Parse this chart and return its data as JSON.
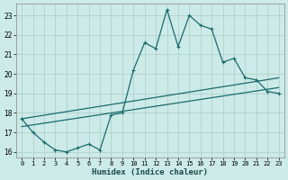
{
  "xlabel": "Humidex (Indice chaleur)",
  "background_color": "#cceae7",
  "grid_color": "#aaccca",
  "line_color": "#1a6b6b",
  "xlim": [
    -0.5,
    23.5
  ],
  "ylim": [
    15.7,
    23.6
  ],
  "yticks": [
    16,
    17,
    18,
    19,
    20,
    21,
    22,
    23
  ],
  "xticks": [
    0,
    1,
    2,
    3,
    4,
    5,
    6,
    7,
    8,
    9,
    10,
    11,
    12,
    13,
    14,
    15,
    16,
    17,
    18,
    19,
    20,
    21,
    22,
    23
  ],
  "line1_x": [
    0,
    1,
    2,
    3,
    4,
    5,
    6,
    7,
    8,
    9,
    10,
    11,
    12,
    13,
    14,
    15,
    16,
    17,
    18,
    19,
    20,
    21,
    22,
    23
  ],
  "line1_y": [
    17.7,
    17.0,
    16.5,
    16.1,
    16.0,
    16.2,
    16.4,
    16.1,
    17.9,
    18.0,
    20.2,
    21.6,
    21.3,
    23.3,
    21.4,
    23.0,
    22.5,
    22.3,
    20.6,
    20.8,
    19.8,
    19.7,
    19.1,
    19.0
  ],
  "line2_x": [
    0,
    23
  ],
  "line2_y": [
    17.7,
    19.8
  ],
  "line3_x": [
    0,
    23
  ],
  "line3_y": [
    17.3,
    19.3
  ]
}
